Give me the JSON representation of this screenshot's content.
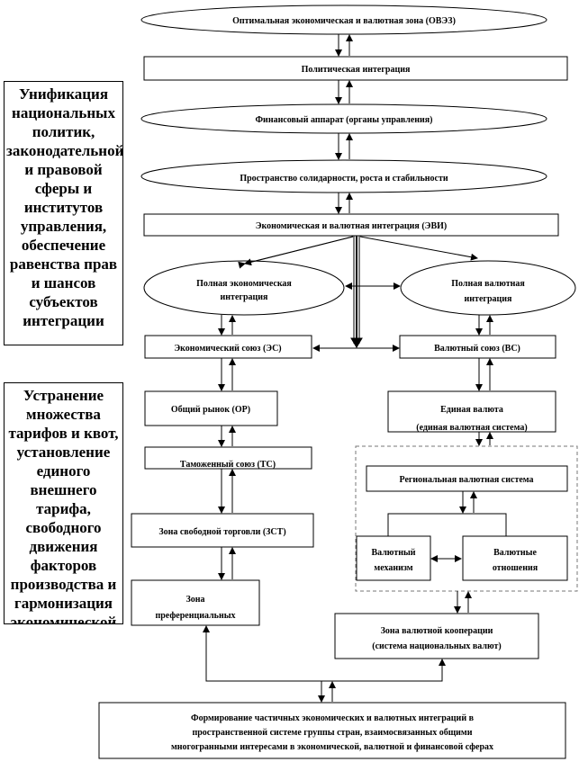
{
  "side_notes": [
    "Унификация национальных политик, законодательной и правовой сферы и институтов управления, обеспечение равенства прав и шансов субъектов интеграции",
    "Устранение множества тарифов и квот, установление единого внешнего тарифа, свободного движения факторов производства и гармонизация экономической"
  ],
  "nodes": {
    "oveз": "Оптимальная экономическая и валютная зона (ОВЭЗ)",
    "political": "Политическая интеграция",
    "financial": "Финансовый аппарат (органы управления)",
    "space": "Пространство солидарности, роста и стабильности",
    "evi": "Экономическая и валютная интеграция (ЭВИ)",
    "full_econ_1": "Полная экономическая",
    "full_econ_2": "интеграция",
    "full_curr_1": "Полная валютная",
    "full_curr_2": "интеграция",
    "econ_union": "Экономический союз (ЭС)",
    "curr_union": "Валютный союз (ВС)",
    "common_market": "Общий рынок (ОР)",
    "single_currency_1": "Единая валюта",
    "single_currency_2": "(единая валютная система)",
    "customs_union": "Таможенный союз (ТС)",
    "regional_system": "Региональная валютная система",
    "curr_mech_1": "Валютный",
    "curr_mech_2": "механизм",
    "curr_rel_1": "Валютные",
    "curr_rel_2": "отношения",
    "free_trade": "Зона свободной торговли (ЗСТ)",
    "pref_1": "Зона",
    "pref_2": "преференциальных",
    "coop_1": "Зона валютной кооперации",
    "coop_2": "(система национальных валют)",
    "bottom_1": "Формирование частичных экономических и валютных интеграций в",
    "bottom_2": "пространственной системе группы стран, взаимосвязанных общими",
    "bottom_3": "многогранными интересами в экономической, валютной и финансовой сферах"
  }
}
